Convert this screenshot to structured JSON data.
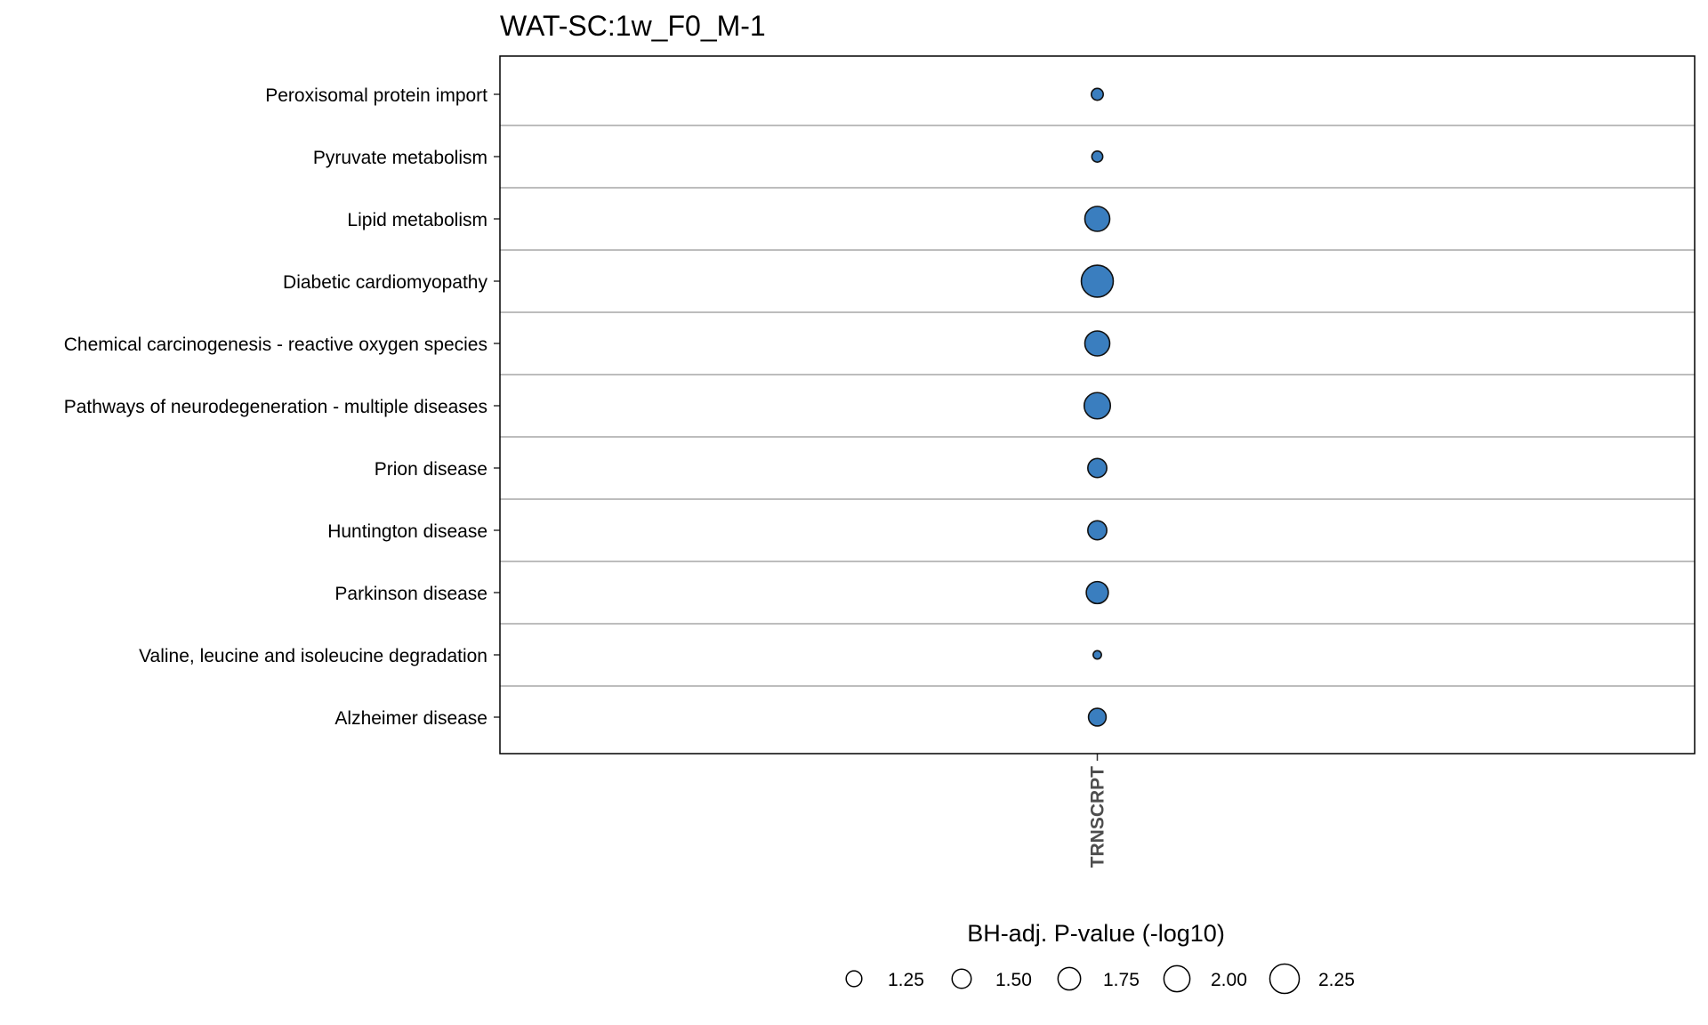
{
  "chart_data": {
    "type": "scatter",
    "title": "WAT-SC:1w_F0_M-1",
    "x_categories": [
      "TRNSCRPT"
    ],
    "y_categories": [
      "Peroxisomal protein import",
      "Pyruvate metabolism",
      "Lipid metabolism",
      "Diabetic cardiomyopathy",
      "Chemical carcinogenesis - reactive oxygen species",
      "Pathways of neurodegeneration - multiple diseases",
      "Prion disease",
      "Huntington disease",
      "Parkinson disease",
      "Valine, leucine and isoleucine degradation",
      "Alzheimer disease"
    ],
    "points": [
      {
        "x": "TRNSCRPT",
        "y": "Peroxisomal protein import",
        "size": 1.25
      },
      {
        "x": "TRNSCRPT",
        "y": "Pyruvate metabolism",
        "size": 1.2
      },
      {
        "x": "TRNSCRPT",
        "y": "Lipid metabolism",
        "size": 1.93
      },
      {
        "x": "TRNSCRPT",
        "y": "Diabetic cardiomyopathy",
        "size": 2.3
      },
      {
        "x": "TRNSCRPT",
        "y": "Chemical carcinogenesis - reactive oxygen species",
        "size": 1.93
      },
      {
        "x": "TRNSCRPT",
        "y": "Pathways of neurodegeneration - multiple diseases",
        "size": 2.0
      },
      {
        "x": "TRNSCRPT",
        "y": "Prion disease",
        "size": 1.62
      },
      {
        "x": "TRNSCRPT",
        "y": "Huntington disease",
        "size": 1.62
      },
      {
        "x": "TRNSCRPT",
        "y": "Parkinson disease",
        "size": 1.78
      },
      {
        "x": "TRNSCRPT",
        "y": "Valine, leucine and isoleucine degradation",
        "size": 1.06
      },
      {
        "x": "TRNSCRPT",
        "y": "Alzheimer disease",
        "size": 1.55
      }
    ],
    "size_legend": {
      "title": "BH-adj. P-value (-log10)",
      "values": [
        1.25,
        1.5,
        1.75,
        2.0,
        2.25
      ],
      "labels": [
        "1.25",
        "1.50",
        "1.75",
        "2.00",
        "2.25"
      ],
      "placement": "bottom"
    },
    "point_color": "#3a7ebf",
    "point_stroke": "#111111",
    "gridline_color": "#bdbdbd",
    "grid": true
  }
}
